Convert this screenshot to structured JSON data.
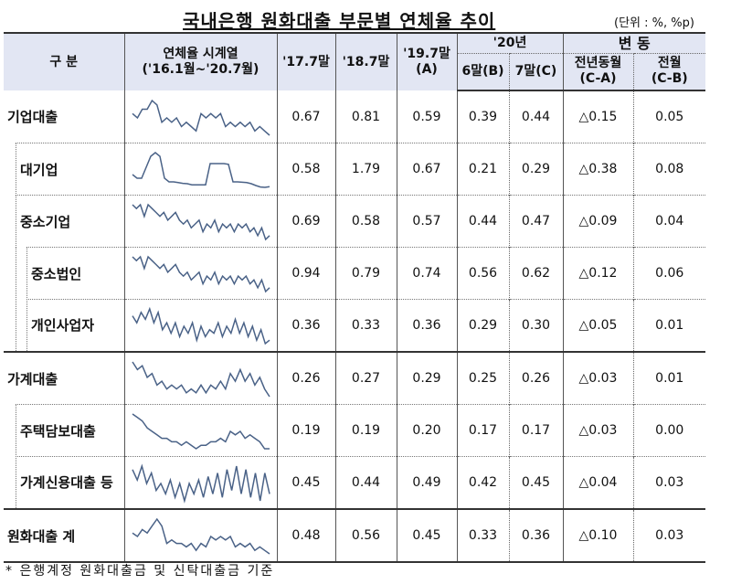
{
  "title": "국내은행 원화대출 부문별 연체율 추이",
  "unit": "(단위 : %, %p)",
  "header": {
    "category": "구 분",
    "series_line1": "연체율 시계열",
    "series_line2": "('16.1월~'20.7월)",
    "c1": "'17.7말",
    "c2": "'18.7말",
    "c3_line1": "'19.7말",
    "c3_line2": "(A)",
    "y20": "'20년",
    "c4": "6말(B)",
    "c5": "7말(C)",
    "change": "변 동",
    "c6_line1": "전년동월",
    "c6_line2": "(C-A)",
    "c7_line1": "전월",
    "c7_line2": "(C-B)"
  },
  "rows": [
    {
      "label": "기업대출",
      "v": [
        "0.67",
        "0.81",
        "0.59",
        "0.39",
        "0.44",
        "△0.15",
        "0.05"
      ],
      "spark": [
        5,
        4,
        6,
        6,
        8,
        7,
        3,
        4,
        3,
        4,
        2,
        3,
        2,
        1,
        5,
        4,
        5,
        4,
        5,
        2,
        3,
        2,
        3,
        2,
        3,
        1,
        2,
        1,
        0
      ]
    },
    {
      "label": "대기업",
      "v": [
        "0.58",
        "1.79",
        "0.67",
        "0.21",
        "0.29",
        "△0.38",
        "0.08"
      ],
      "spark": [
        4,
        3,
        3,
        6,
        9,
        10,
        9,
        3,
        2,
        2,
        1.8,
        1.6,
        1.5,
        1.2,
        1.2,
        1.2,
        1.2,
        7,
        7,
        7,
        7,
        6.8,
        2,
        2,
        1.9,
        1.8,
        1.5,
        1,
        0.6,
        0.5,
        0.7
      ]
    },
    {
      "label": "중소기업",
      "v": [
        "0.69",
        "0.58",
        "0.57",
        "0.44",
        "0.47",
        "△0.09",
        "0.04"
      ],
      "spark": [
        10,
        9,
        10,
        7,
        10,
        9,
        8,
        7,
        8,
        6,
        7,
        8,
        6,
        5,
        6,
        4,
        5,
        6,
        3,
        5,
        4,
        6,
        3,
        5,
        4,
        5,
        3,
        5,
        4,
        5,
        3,
        4,
        2,
        4,
        1,
        2
      ]
    },
    {
      "label": "중소법인",
      "v": [
        "0.94",
        "0.79",
        "0.74",
        "0.56",
        "0.62",
        "△0.12",
        "0.06"
      ],
      "spark": [
        10,
        9,
        10,
        7,
        10,
        9,
        8,
        7,
        8,
        6,
        7,
        8,
        6,
        5,
        6,
        4,
        5,
        6,
        3,
        5,
        4,
        6,
        3,
        5,
        4,
        5,
        3,
        5,
        4,
        5,
        3,
        4,
        2,
        4,
        1,
        2
      ]
    },
    {
      "label": "개인사업자",
      "v": [
        "0.36",
        "0.33",
        "0.36",
        "0.29",
        "0.30",
        "△0.05",
        "0.01"
      ],
      "spark": [
        8,
        6,
        9,
        7,
        10,
        6,
        9,
        4,
        6,
        3,
        6,
        2,
        5,
        3,
        6,
        1,
        5,
        2,
        4,
        3,
        6,
        2,
        5,
        3,
        7,
        3,
        6,
        2,
        5,
        1,
        4,
        0,
        1
      ]
    },
    {
      "label": "가계대출",
      "v": [
        "0.26",
        "0.27",
        "0.29",
        "0.25",
        "0.26",
        "△0.03",
        "0.01"
      ],
      "spark": [
        10,
        8,
        9,
        6,
        7,
        4,
        5,
        3,
        4,
        3,
        4,
        2,
        3,
        2,
        4,
        2,
        4,
        3,
        5,
        3,
        7,
        5,
        8,
        5,
        7,
        4,
        6,
        3,
        1
      ]
    },
    {
      "label": "주택담보대출",
      "v": [
        "0.19",
        "0.19",
        "0.20",
        "0.17",
        "0.17",
        "△0.03",
        "0.00"
      ],
      "spark": [
        10,
        9,
        8,
        6,
        5,
        4,
        3,
        3,
        2,
        2,
        1,
        2,
        1,
        0,
        1,
        1,
        2,
        2,
        3,
        2,
        5,
        4,
        5,
        3,
        4,
        3,
        2,
        0,
        0
      ]
    },
    {
      "label": "가계신용대출 등",
      "v": [
        "0.45",
        "0.44",
        "0.49",
        "0.42",
        "0.45",
        "△0.04",
        "0.03"
      ],
      "spark": [
        9,
        6,
        10,
        5,
        8,
        3,
        5,
        2,
        6,
        1,
        5,
        0,
        5,
        2,
        6,
        1,
        7,
        2,
        8,
        1,
        9,
        3,
        10,
        2,
        9,
        1,
        8,
        0,
        8,
        2
      ]
    },
    {
      "label": "원화대출 계",
      "v": [
        "0.48",
        "0.56",
        "0.45",
        "0.33",
        "0.36",
        "△0.10",
        "0.03"
      ],
      "spark": [
        6,
        5,
        7,
        6,
        8,
        10,
        8,
        3,
        4,
        3,
        3,
        2,
        3,
        1,
        3,
        2,
        5,
        4,
        5,
        4,
        5,
        2,
        3,
        2,
        3,
        1,
        2,
        1,
        0
      ]
    }
  ],
  "footnote": "* 은행계정 원화대출금 및 신탁대출금 기준",
  "colors": {
    "header_bg": "#e2e6f3",
    "spark": "#4a6287"
  }
}
